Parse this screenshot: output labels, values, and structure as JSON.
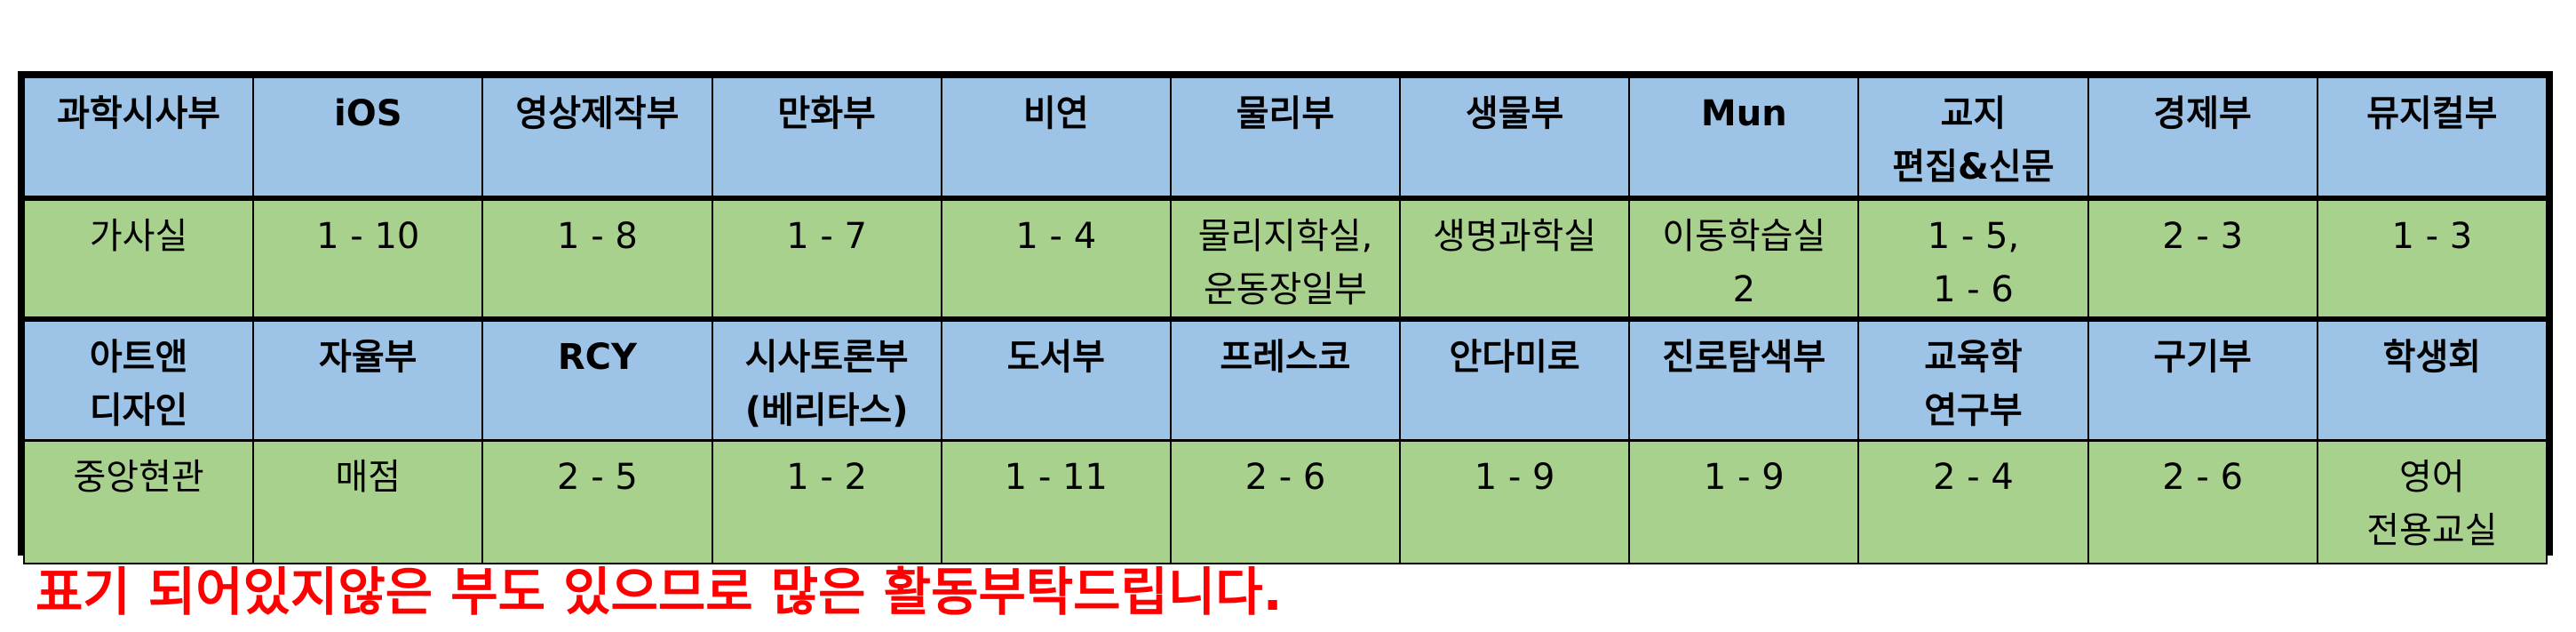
{
  "table": {
    "row1_headers": [
      "과학시사부",
      "iOS",
      "영상제작부",
      "만화부",
      "비연",
      "물리부",
      "생물부",
      "Mun",
      "교지\n편집&신문",
      "경제부",
      "뮤지컬부"
    ],
    "row1_values": [
      "가사실",
      "1 - 10",
      "1 - 8",
      "1 - 7",
      "1 - 4",
      "물리지학실,\n운동장일부",
      "생명과학실",
      "이동학습실\n2",
      "1 - 5,\n1 - 6",
      "2 - 3",
      "1 - 3"
    ],
    "row2_headers": [
      "아트앤\n디자인",
      "자율부",
      "RCY",
      "시사토론부\n(베리타스)",
      "도서부",
      "프레스코",
      "안다미로",
      "진로탐색부",
      "교육학\n연구부",
      "구기부",
      "학생회"
    ],
    "row2_values": [
      "중앙현관",
      "매점",
      "2 - 5",
      "1 - 2",
      "1 - 11",
      "2 - 6",
      "1 - 9",
      "1 - 9",
      "2 - 4",
      "2 - 6",
      "영어\n전용교실"
    ]
  },
  "notice": "표기 되어있지않은 부도 있으므로 많은 활동부탁드립니다.",
  "colors": {
    "header_bg": "#9dc3e6",
    "value_bg": "#a9d18e",
    "notice_text": "#ff0000"
  }
}
